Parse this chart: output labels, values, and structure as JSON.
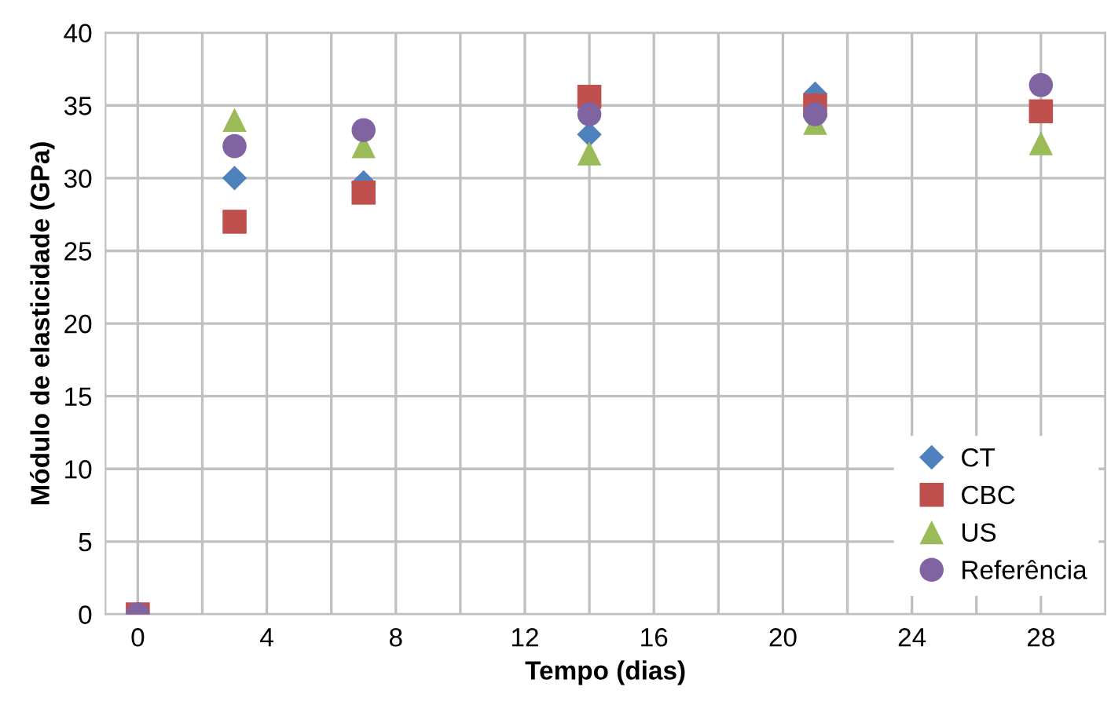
{
  "chart_data": {
    "type": "scatter",
    "xlabel": "Tempo (dias)",
    "ylabel": "Módulo de elasticidade (GPa)",
    "x": [
      0,
      3,
      7,
      14,
      21,
      28
    ],
    "series": [
      {
        "name": "CT",
        "color": "#4f81bd",
        "marker": "diamond",
        "values": [
          null,
          30,
          29.7,
          33,
          35.8,
          null
        ]
      },
      {
        "name": "CBC",
        "color": "#c0504d",
        "marker": "square",
        "values": [
          0,
          27,
          29,
          35.6,
          35,
          34.6
        ]
      },
      {
        "name": "US",
        "color": "#9bbb59",
        "marker": "triangle",
        "values": [
          null,
          34,
          32.2,
          31.7,
          33.8,
          32.4
        ]
      },
      {
        "name": "Referência",
        "color": "#8064a2",
        "marker": "circle",
        "values": [
          0,
          32.2,
          33.3,
          34.4,
          34.4,
          36.4
        ]
      }
    ],
    "xlim": [
      -1,
      30
    ],
    "xticks": [
      0,
      {
        "value": 2,
        "label": null
      },
      4,
      {
        "value": 6,
        "label": null
      },
      8,
      {
        "value": 10,
        "label": null
      },
      12,
      {
        "value": 14,
        "label": null
      },
      16,
      {
        "value": 18,
        "label": null
      },
      20,
      {
        "value": 22,
        "label": null
      },
      24,
      {
        "value": 26,
        "label": null
      },
      28,
      {
        "value": 30,
        "label": null
      }
    ],
    "ylim": [
      0,
      40
    ],
    "yticks": [
      0,
      5,
      10,
      15,
      20,
      25,
      30,
      35,
      40
    ],
    "grid": true,
    "legend": "bottom right"
  }
}
